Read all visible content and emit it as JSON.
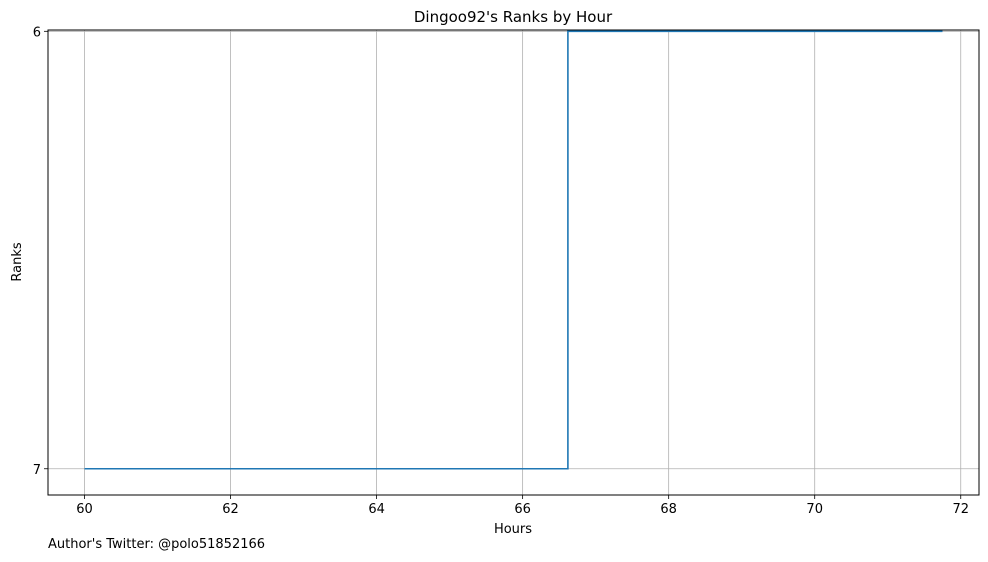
{
  "chart_data": {
    "type": "line",
    "step": true,
    "title": "Dingoo92's Ranks by Hour",
    "xlabel": "Hours",
    "ylabel": "Ranks",
    "x": [
      60.0,
      66.62,
      66.62,
      71.75
    ],
    "y": [
      7,
      7,
      6,
      6
    ],
    "series": [
      {
        "values": [
          7,
          7,
          6,
          6
        ],
        "color": "#1f77b4"
      }
    ],
    "xlim": [
      59.5,
      72.25
    ],
    "ylim": [
      7.06,
      5.997
    ],
    "y_inverted": true,
    "x_ticks": [
      60,
      62,
      64,
      66,
      68,
      70,
      72
    ],
    "x_tick_labels": [
      "60",
      "62",
      "64",
      "66",
      "68",
      "70",
      "72"
    ],
    "y_ticks": [
      6,
      7
    ],
    "y_tick_labels": [
      "6",
      "7"
    ],
    "grid": true
  },
  "footer": {
    "text": "Author's Twitter: @polo51852166"
  }
}
